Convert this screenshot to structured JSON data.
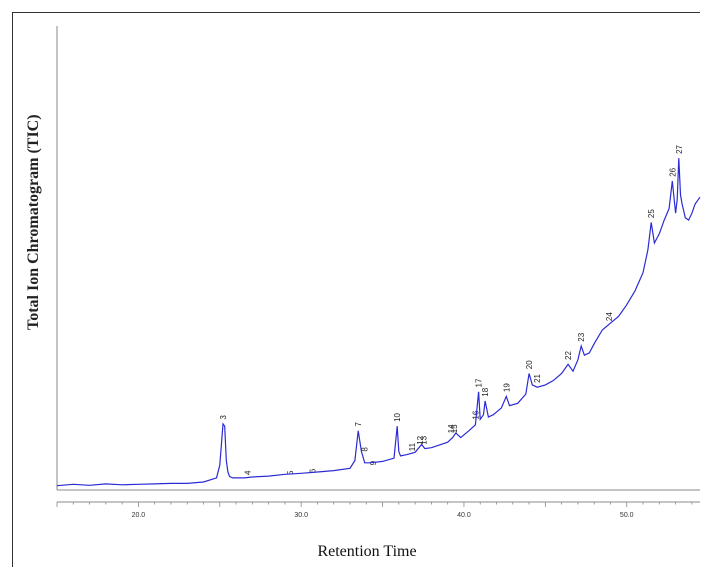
{
  "chart_data": {
    "type": "line",
    "title": "",
    "xlabel": "Retention Time",
    "ylabel": "Total Ion Chromatogram (TIC)",
    "x_ticks": [
      "20.0",
      "30.0",
      "40.0",
      "50.0"
    ],
    "x_tick_values": [
      20,
      30,
      40,
      50
    ],
    "xlim": [
      15.0,
      54.5
    ],
    "ylim": [
      0,
      100
    ],
    "grid": false,
    "legend": "none",
    "line_color": "#2b2bd6",
    "series": [
      {
        "x": [
          15.0,
          16.0,
          17.0,
          18.0,
          19.0,
          20.0,
          21.0,
          22.0,
          23.0,
          24.0,
          24.8,
          25.0,
          25.2,
          25.3,
          25.4,
          25.5,
          25.6,
          25.8,
          26.5,
          27.0,
          28.0,
          29.0,
          30.0,
          31.0,
          32.0,
          33.0,
          33.3,
          33.5,
          33.7,
          33.9,
          34.2,
          35.0,
          35.7,
          35.9,
          36.0,
          36.1,
          36.5,
          37.0,
          37.4,
          37.6,
          38.0,
          39.0,
          39.3,
          39.5,
          39.8,
          40.3,
          40.7,
          40.9,
          41.0,
          41.2,
          41.3,
          41.5,
          41.8,
          42.3,
          42.6,
          42.8,
          43.3,
          43.8,
          44.0,
          44.2,
          44.5,
          45.0,
          45.5,
          46.0,
          46.4,
          46.7,
          47.0,
          47.2,
          47.4,
          47.7,
          48.0,
          48.5,
          49.0,
          49.5,
          50.0,
          50.5,
          51.0,
          51.3,
          51.5,
          51.7,
          52.0,
          52.3,
          52.6,
          52.8,
          53.0,
          53.1,
          53.2,
          53.3,
          53.4,
          53.6,
          53.8,
          54.0,
          54.2,
          54.5
        ],
        "y": [
          0.5,
          0.8,
          0.6,
          0.9,
          0.7,
          0.8,
          0.9,
          1.0,
          1.0,
          1.3,
          2.2,
          5.0,
          14.0,
          13.5,
          6.0,
          3.5,
          2.5,
          2.2,
          2.2,
          2.4,
          2.6,
          3.0,
          3.2,
          3.5,
          3.8,
          4.3,
          6.0,
          12.5,
          8.0,
          5.5,
          5.5,
          5.8,
          6.5,
          13.5,
          8.0,
          7.0,
          7.3,
          7.8,
          9.5,
          8.6,
          8.8,
          10.0,
          11.0,
          12.0,
          11.0,
          12.5,
          13.8,
          21.0,
          15.0,
          16.0,
          19.0,
          15.5,
          16.0,
          17.5,
          20.0,
          18.0,
          18.5,
          20.5,
          25.0,
          22.5,
          22.0,
          22.5,
          23.5,
          25.0,
          27.0,
          25.5,
          28.0,
          31.0,
          29.0,
          29.5,
          31.5,
          34.5,
          36.0,
          37.5,
          40.0,
          43.0,
          47.0,
          52.0,
          58.0,
          53.5,
          55.5,
          58.5,
          61.0,
          67.0,
          60.0,
          63.0,
          72.0,
          64.0,
          62.0,
          59.0,
          58.5,
          60.0,
          62.0,
          63.5
        ]
      }
    ],
    "peak_labels": [
      {
        "label": "3",
        "x": 25.2,
        "y": 14.5
      },
      {
        "label": "4",
        "x": 26.7,
        "y": 2.4
      },
      {
        "label": "5",
        "x": 29.3,
        "y": 2.4
      },
      {
        "label": "6",
        "x": 30.7,
        "y": 2.8
      },
      {
        "label": "7",
        "x": 33.5,
        "y": 13.0
      },
      {
        "label": "8",
        "x": 33.9,
        "y": 7.5
      },
      {
        "label": "9",
        "x": 34.4,
        "y": 4.5
      },
      {
        "label": "10",
        "x": 35.9,
        "y": 14.0
      },
      {
        "label": "11",
        "x": 36.8,
        "y": 7.6
      },
      {
        "label": "12",
        "x": 37.3,
        "y": 9.0
      },
      {
        "label": "13",
        "x": 37.5,
        "y": 9.0
      },
      {
        "label": "14",
        "x": 39.2,
        "y": 11.5
      },
      {
        "label": "15",
        "x": 39.4,
        "y": 11.5
      },
      {
        "label": "16",
        "x": 40.7,
        "y": 14.5
      },
      {
        "label": "17",
        "x": 40.9,
        "y": 21.5
      },
      {
        "label": "18",
        "x": 41.3,
        "y": 19.5
      },
      {
        "label": "19",
        "x": 42.6,
        "y": 20.5
      },
      {
        "label": "20",
        "x": 44.0,
        "y": 25.5
      },
      {
        "label": "21",
        "x": 44.5,
        "y": 22.5
      },
      {
        "label": "22",
        "x": 46.4,
        "y": 27.5
      },
      {
        "label": "23",
        "x": 47.2,
        "y": 31.5
      },
      {
        "label": "24",
        "x": 48.9,
        "y": 36.0
      },
      {
        "label": "25",
        "x": 51.5,
        "y": 58.5
      },
      {
        "label": "26",
        "x": 52.8,
        "y": 67.5
      },
      {
        "label": "27",
        "x": 53.2,
        "y": 72.5
      }
    ]
  }
}
